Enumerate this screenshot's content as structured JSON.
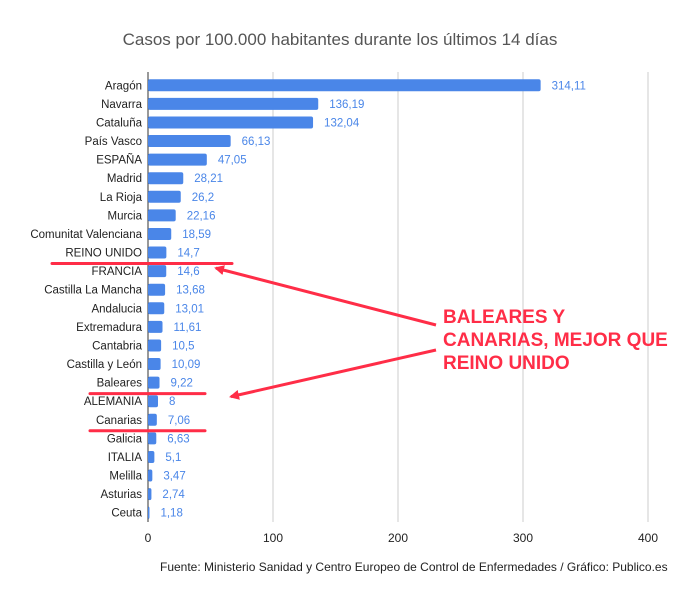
{
  "chart_data": {
    "type": "bar",
    "orientation": "horizontal",
    "title": "Casos por 100.000 habitantes durante los últimos 14 días",
    "categories": [
      "Aragón",
      "Navarra",
      "Cataluña",
      "País Vasco",
      "ESPAÑA",
      "Madrid",
      "La Rioja",
      "Murcia",
      "Comunitat Valenciana",
      "REINO UNIDO",
      "FRANCIA",
      "Castilla La Mancha",
      "Andalucia",
      "Extremadura",
      "Cantabria",
      "Castilla y León",
      "Baleares",
      "ALEMANIA",
      "Canarias",
      "Galicia",
      "ITALIA",
      "Melilla",
      "Asturias",
      "Ceuta"
    ],
    "values": [
      314.11,
      136.19,
      132.04,
      66.13,
      47.05,
      28.21,
      26.2,
      22.16,
      18.59,
      14.7,
      14.6,
      13.68,
      13.01,
      11.61,
      10.5,
      10.09,
      9.22,
      8,
      7.06,
      6.63,
      5.1,
      3.47,
      2.74,
      1.18
    ],
    "value_labels": [
      "314,11",
      "136,19",
      "132,04",
      "66,13",
      "47,05",
      "28,21",
      "26,2",
      "22,16",
      "18,59",
      "14,7",
      "14,6",
      "13,68",
      "13,01",
      "11,61",
      "10,5",
      "10,09",
      "9,22",
      "8",
      "7,06",
      "6,63",
      "5,1",
      "3,47",
      "2,74",
      "1,18"
    ],
    "xlim": [
      0,
      400
    ],
    "xticks": [
      0,
      100,
      200,
      300,
      400
    ],
    "grid": true,
    "bar_color": "#4a86e8",
    "label_color": "#4a86e8",
    "highlight_color": "#ff2d47",
    "highlighted": [
      "REINO UNIDO",
      "Baleares",
      "Canarias"
    ],
    "annotation": "BALEARES Y CANARIAS, MEJOR QUE REINO UNIDO",
    "source": "Fuente: Ministerio Sanidad y Centro Europeo de Control de Enfermedades / Gráfico: Publico.es"
  }
}
